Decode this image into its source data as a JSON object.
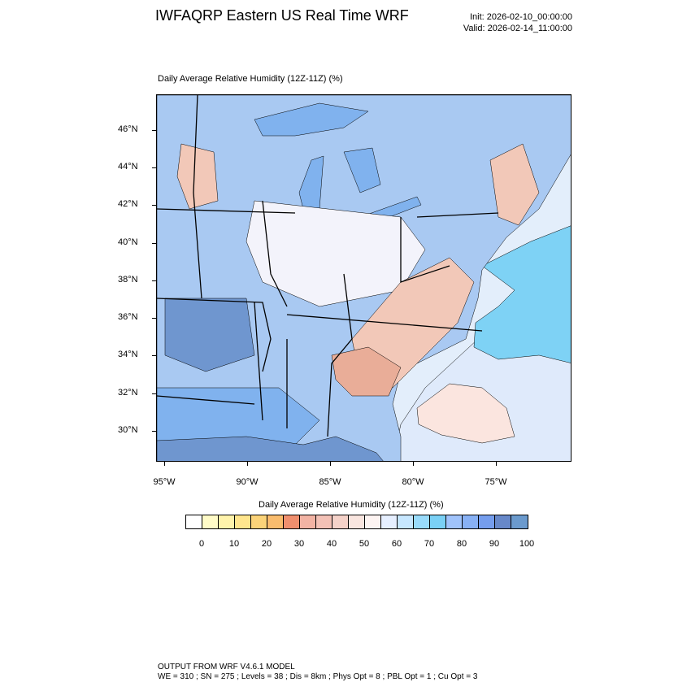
{
  "header": {
    "title": "IWFAQRP Eastern US Real Time WRF",
    "init": "Init: 2026-02-10_00:00:00",
    "valid": "Valid: 2026-02-14_11:00:00"
  },
  "map": {
    "subtitle": "Daily Average Relative Humidity (12Z-11Z)   (%)",
    "lat_labels": [
      "46°N",
      "44°N",
      "42°N",
      "40°N",
      "38°N",
      "36°N",
      "34°N",
      "32°N",
      "30°N"
    ],
    "lon_labels": [
      "95°W",
      "90°W",
      "85°W",
      "80°W",
      "75°W"
    ],
    "land_colors": {
      "dry": "#f2c8b8",
      "drier": "#e9ad98",
      "moderate": "#f3f3fb",
      "moist": "#a9c9f2",
      "wet": "#80b2ee",
      "very_wet": "#6f96cf"
    },
    "ocean_colors": {
      "near": "#e3eefb",
      "band": "#7ed2f5",
      "far": "#dfeafb",
      "dry_patch": "#fbe5df"
    }
  },
  "colorbar": {
    "title": "Daily Average Relative Humidity (12Z-11Z)  (%)",
    "colors": [
      "#ffffff",
      "#fffbc7",
      "#fff3ab",
      "#ffe58d",
      "#fbd379",
      "#f9bc6e",
      "#f08f6e",
      "#f2b3a4",
      "#f3c1b6",
      "#f5d2c9",
      "#f9e5df",
      "#fdf4f2",
      "#e6efff",
      "#c7e7ff",
      "#99dbfb",
      "#7ad0f5",
      "#a0c3fb",
      "#88b1f5",
      "#759ded",
      "#6788c9",
      "#6b9acd"
    ],
    "labels": [
      "0",
      "10",
      "20",
      "30",
      "40",
      "50",
      "60",
      "70",
      "80",
      "90",
      "100"
    ]
  },
  "footer": {
    "line1": "OUTPUT FROM WRF V4.6.1 MODEL",
    "line2": "WE = 310 ; SN = 275 ; Levels = 38 ; Dis = 8km ; Phys Opt = 8 ; PBL Opt = 1 ; Cu Opt = 3"
  }
}
